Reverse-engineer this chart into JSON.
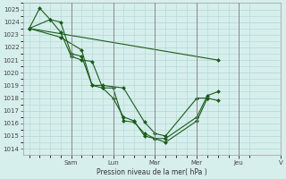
{
  "xlabel": "Pression niveau de la mer( hPa )",
  "ylim": [
    1013.5,
    1025.5
  ],
  "yticks": [
    1014,
    1015,
    1016,
    1017,
    1018,
    1019,
    1020,
    1021,
    1022,
    1023,
    1024,
    1025
  ],
  "background_color": "#d6eeec",
  "grid_color": "#afd8d4",
  "line_color": "#1a5c1a",
  "marker_color": "#1a5c1a",
  "day_labels": [
    "Sam",
    "Lun",
    "Mar",
    "Mer",
    "Jeu",
    "V"
  ],
  "day_positions": [
    2.0,
    4.0,
    6.0,
    8.0,
    10.0,
    12.0
  ],
  "series": [
    [
      0.0,
      1023.5,
      0.5,
      1025.1,
      1.0,
      1024.2,
      1.5,
      1023.2,
      2.0,
      1021.3,
      2.5,
      1021.0,
      3.0,
      1020.9,
      3.5,
      1018.8,
      4.0,
      1018.8,
      4.5,
      1016.2,
      5.0,
      1016.1,
      5.5,
      1015.2,
      6.0,
      1014.8,
      6.5,
      1014.8,
      8.0,
      1016.5,
      8.5,
      1018.2,
      9.0,
      1018.5
    ],
    [
      0.0,
      1023.5,
      1.0,
      1024.2,
      1.5,
      1024.0,
      2.0,
      1021.5,
      2.5,
      1021.3,
      3.0,
      1019.0,
      3.5,
      1018.8,
      4.0,
      1018.0,
      4.5,
      1016.5,
      5.0,
      1016.2,
      5.5,
      1015.0,
      6.0,
      1014.8,
      6.5,
      1014.5,
      8.0,
      1016.2,
      8.5,
      1018.0,
      9.0,
      1017.8
    ],
    [
      0.0,
      1023.5,
      1.5,
      1022.8,
      2.5,
      1021.8,
      3.0,
      1019.0,
      3.5,
      1019.0,
      4.5,
      1018.8,
      5.5,
      1016.1,
      6.0,
      1015.2,
      6.5,
      1015.0,
      8.0,
      1018.0,
      8.5,
      1018.0
    ],
    [
      0.0,
      1023.5,
      9.0,
      1021.0
    ]
  ]
}
